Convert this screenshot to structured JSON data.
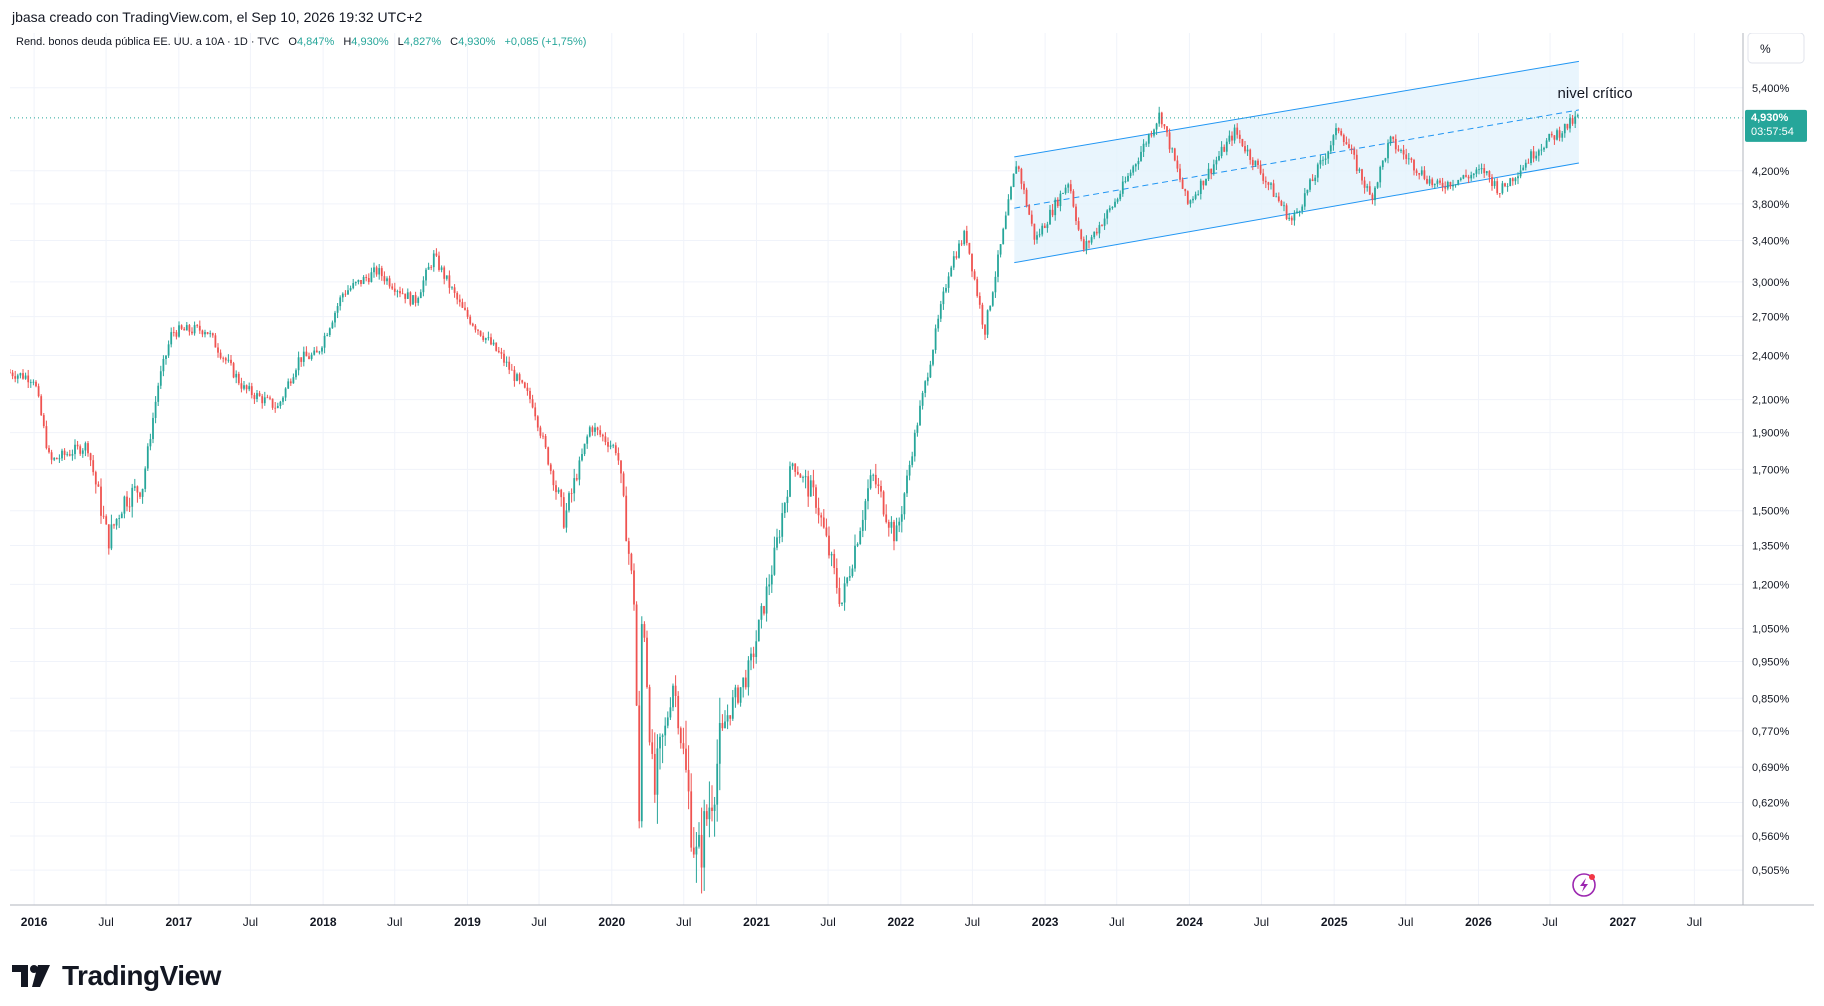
{
  "header": {
    "credit": "jbasa creado con TradingView.com, el Sep 10, 2026 19:32 UTC+2"
  },
  "legend": {
    "symbol": "Rend. bonos deuda pública EE. UU. a 10A · 1D · TVC",
    "o_label": "O",
    "o_value": "4,847%",
    "h_label": "H",
    "h_value": "4,930%",
    "l_label": "L",
    "l_value": "4,827%",
    "c_label": "C",
    "c_value": "4,930%",
    "change": "+0,085 (+1,75%)"
  },
  "price_axis": {
    "unit_button": "%",
    "last_price": "4,930%",
    "countdown": "03:57:54"
  },
  "annotation": {
    "text": "nivel crítico"
  },
  "brand": {
    "name": "TradingView"
  },
  "colors": {
    "up": "#26a69a",
    "down": "#ef5350",
    "channel": "#2196f3",
    "channel_fill": "#e3f2fd",
    "price_line": "#26a69a",
    "grid": "#f0f3fa",
    "axis_text": "#131722",
    "lightning": "#9c27b0"
  },
  "icons": {
    "lightning": "lightning-icon",
    "logo": "tv-logo-icon"
  },
  "chart_data": {
    "type": "candlestick",
    "title": "Rend. bonos deuda pública EE. UU. a 10A · 1D · TVC",
    "y_scale": "log",
    "ylim": [
      0.46,
      6.0
    ],
    "xlim": [
      "2015-11-01",
      "2027-11-01"
    ],
    "y_ticks": [
      {
        "v": 5.4,
        "label": "5,400%"
      },
      {
        "v": 4.2,
        "label": "4,200%"
      },
      {
        "v": 3.8,
        "label": "3,800%"
      },
      {
        "v": 3.4,
        "label": "3,400%"
      },
      {
        "v": 3.0,
        "label": "3,000%"
      },
      {
        "v": 2.7,
        "label": "2,700%"
      },
      {
        "v": 2.4,
        "label": "2,400%"
      },
      {
        "v": 2.1,
        "label": "2,100%"
      },
      {
        "v": 1.9,
        "label": "1,900%"
      },
      {
        "v": 1.7,
        "label": "1,700%"
      },
      {
        "v": 1.5,
        "label": "1,500%"
      },
      {
        "v": 1.35,
        "label": "1,350%"
      },
      {
        "v": 1.2,
        "label": "1,200%"
      },
      {
        "v": 1.05,
        "label": "1,050%"
      },
      {
        "v": 0.95,
        "label": "0,950%"
      },
      {
        "v": 0.85,
        "label": "0,850%"
      },
      {
        "v": 0.77,
        "label": "0,770%"
      },
      {
        "v": 0.69,
        "label": "0,690%"
      },
      {
        "v": 0.62,
        "label": "0,620%"
      },
      {
        "v": 0.56,
        "label": "0,560%"
      },
      {
        "v": 0.505,
        "label": "0,505%"
      }
    ],
    "x_ticks": [
      {
        "date": "2016-01-01",
        "label": "2016"
      },
      {
        "date": "2016-07-01",
        "label": "Jul"
      },
      {
        "date": "2017-01-01",
        "label": "2017"
      },
      {
        "date": "2017-07-01",
        "label": "Jul"
      },
      {
        "date": "2018-01-01",
        "label": "2018"
      },
      {
        "date": "2018-07-01",
        "label": "Jul"
      },
      {
        "date": "2019-01-01",
        "label": "2019"
      },
      {
        "date": "2019-07-01",
        "label": "Jul"
      },
      {
        "date": "2020-01-01",
        "label": "2020"
      },
      {
        "date": "2020-07-01",
        "label": "Jul"
      },
      {
        "date": "2021-01-01",
        "label": "2021"
      },
      {
        "date": "2021-07-01",
        "label": "Jul"
      },
      {
        "date": "2022-01-01",
        "label": "2022"
      },
      {
        "date": "2022-07-01",
        "label": "Jul"
      },
      {
        "date": "2023-01-01",
        "label": "2023"
      },
      {
        "date": "2023-07-01",
        "label": "Jul"
      },
      {
        "date": "2024-01-01",
        "label": "2024"
      },
      {
        "date": "2024-07-01",
        "label": "Jul"
      },
      {
        "date": "2025-01-01",
        "label": "2025"
      },
      {
        "date": "2025-07-01",
        "label": "Jul"
      },
      {
        "date": "2026-01-01",
        "label": "2026"
      },
      {
        "date": "2026-07-01",
        "label": "Jul"
      },
      {
        "date": "2027-01-01",
        "label": "2027"
      },
      {
        "date": "2027-07-01",
        "label": "Jul"
      }
    ],
    "series_path": [
      {
        "date": "2015-11-01",
        "y": 2.28
      },
      {
        "date": "2016-01-01",
        "y": 2.24
      },
      {
        "date": "2016-02-10",
        "y": 1.74
      },
      {
        "date": "2016-04-01",
        "y": 1.79
      },
      {
        "date": "2016-05-15",
        "y": 1.83
      },
      {
        "date": "2016-07-06",
        "y": 1.37
      },
      {
        "date": "2016-08-15",
        "y": 1.55
      },
      {
        "date": "2016-10-01",
        "y": 1.62
      },
      {
        "date": "2016-11-10",
        "y": 2.2
      },
      {
        "date": "2016-12-15",
        "y": 2.58
      },
      {
        "date": "2017-03-10",
        "y": 2.6
      },
      {
        "date": "2017-06-15",
        "y": 2.17
      },
      {
        "date": "2017-09-08",
        "y": 2.05
      },
      {
        "date": "2017-11-01",
        "y": 2.38
      },
      {
        "date": "2017-12-15",
        "y": 2.4
      },
      {
        "date": "2018-02-20",
        "y": 2.9
      },
      {
        "date": "2018-05-17",
        "y": 3.1
      },
      {
        "date": "2018-08-20",
        "y": 2.82
      },
      {
        "date": "2018-10-08",
        "y": 3.24
      },
      {
        "date": "2018-12-20",
        "y": 2.75
      },
      {
        "date": "2019-03-25",
        "y": 2.4
      },
      {
        "date": "2019-06-15",
        "y": 2.08
      },
      {
        "date": "2019-09-03",
        "y": 1.46
      },
      {
        "date": "2019-11-08",
        "y": 1.94
      },
      {
        "date": "2020-01-15",
        "y": 1.8
      },
      {
        "date": "2020-03-01",
        "y": 1.1
      },
      {
        "date": "2020-03-09",
        "y": 0.49
      },
      {
        "date": "2020-03-18",
        "y": 1.18
      },
      {
        "date": "2020-04-15",
        "y": 0.62
      },
      {
        "date": "2020-06-05",
        "y": 0.9
      },
      {
        "date": "2020-08-04",
        "y": 0.51
      },
      {
        "date": "2020-10-15",
        "y": 0.8
      },
      {
        "date": "2020-12-15",
        "y": 0.93
      },
      {
        "date": "2021-02-15",
        "y": 1.3
      },
      {
        "date": "2021-03-31",
        "y": 1.74
      },
      {
        "date": "2021-06-01",
        "y": 1.55
      },
      {
        "date": "2021-08-04",
        "y": 1.13
      },
      {
        "date": "2021-10-20",
        "y": 1.68
      },
      {
        "date": "2021-12-20",
        "y": 1.38
      },
      {
        "date": "2022-02-15",
        "y": 2.0
      },
      {
        "date": "2022-05-05",
        "y": 3.15
      },
      {
        "date": "2022-06-14",
        "y": 3.48
      },
      {
        "date": "2022-08-01",
        "y": 2.58
      },
      {
        "date": "2022-10-21",
        "y": 4.33
      },
      {
        "date": "2022-12-07",
        "y": 3.4
      },
      {
        "date": "2023-03-02",
        "y": 4.08
      },
      {
        "date": "2023-04-06",
        "y": 3.3
      },
      {
        "date": "2023-07-01",
        "y": 3.85
      },
      {
        "date": "2023-10-19",
        "y": 5.0
      },
      {
        "date": "2023-12-27",
        "y": 3.79
      },
      {
        "date": "2024-04-25",
        "y": 4.73
      },
      {
        "date": "2024-09-16",
        "y": 3.6
      },
      {
        "date": "2025-01-14",
        "y": 4.8
      },
      {
        "date": "2025-04-04",
        "y": 3.86
      },
      {
        "date": "2025-05-22",
        "y": 4.6
      },
      {
        "date": "2025-09-15",
        "y": 4.0
      },
      {
        "date": "2026-01-15",
        "y": 4.2
      },
      {
        "date": "2026-02-25",
        "y": 3.95
      },
      {
        "date": "2026-06-01",
        "y": 4.5
      },
      {
        "date": "2026-09-10",
        "y": 4.93
      }
    ],
    "channel": {
      "start_date": "2022-10-15",
      "end_date": "2026-09-12",
      "upper": [
        4.38,
        5.85
      ],
      "middle": [
        3.75,
        5.05
      ],
      "lower": [
        3.18,
        4.3
      ]
    },
    "last": {
      "date": "2026-09-10",
      "open": 4.847,
      "high": 4.93,
      "low": 4.827,
      "close": 4.93
    }
  }
}
